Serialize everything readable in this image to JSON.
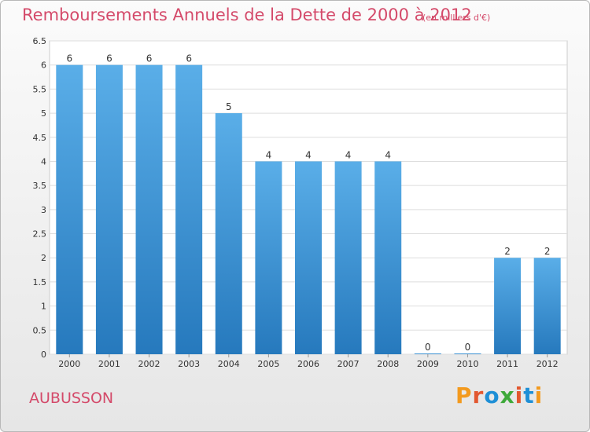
{
  "header": {
    "title": "Remboursements Annuels de la Dette de 2000 à 2012",
    "subtitle": "(en milliers d'€)"
  },
  "footer": {
    "town": "AUBUSSON",
    "logo": "Proxiti"
  },
  "colors": {
    "title": "#d44a6a",
    "bar_top": "#5aaee8",
    "bar_bottom": "#2679bd",
    "logo_letters": [
      "#f39a1e",
      "#e2572f",
      "#1e8fd6",
      "#3ea93a",
      "#e2572f",
      "#1e8fd6",
      "#f39a1e"
    ]
  },
  "chart_data": {
    "type": "bar",
    "categories": [
      "2000",
      "2001",
      "2002",
      "2003",
      "2004",
      "2005",
      "2006",
      "2007",
      "2008",
      "2009",
      "2010",
      "2011",
      "2012"
    ],
    "values": [
      6,
      6,
      6,
      6,
      5,
      4,
      4,
      4,
      4,
      0,
      0,
      2,
      2
    ],
    "value_labels": [
      "6",
      "6",
      "6",
      "6",
      "5",
      "4",
      "4",
      "4",
      "4",
      "0",
      "0",
      "2",
      "2"
    ],
    "yticks": [
      "0",
      "0.5",
      "1",
      "1.5",
      "2",
      "2.5",
      "3",
      "3.5",
      "4",
      "4.5",
      "5",
      "5.5",
      "6",
      "6.5"
    ],
    "ylim": [
      0,
      6.5
    ],
    "grid": true
  }
}
